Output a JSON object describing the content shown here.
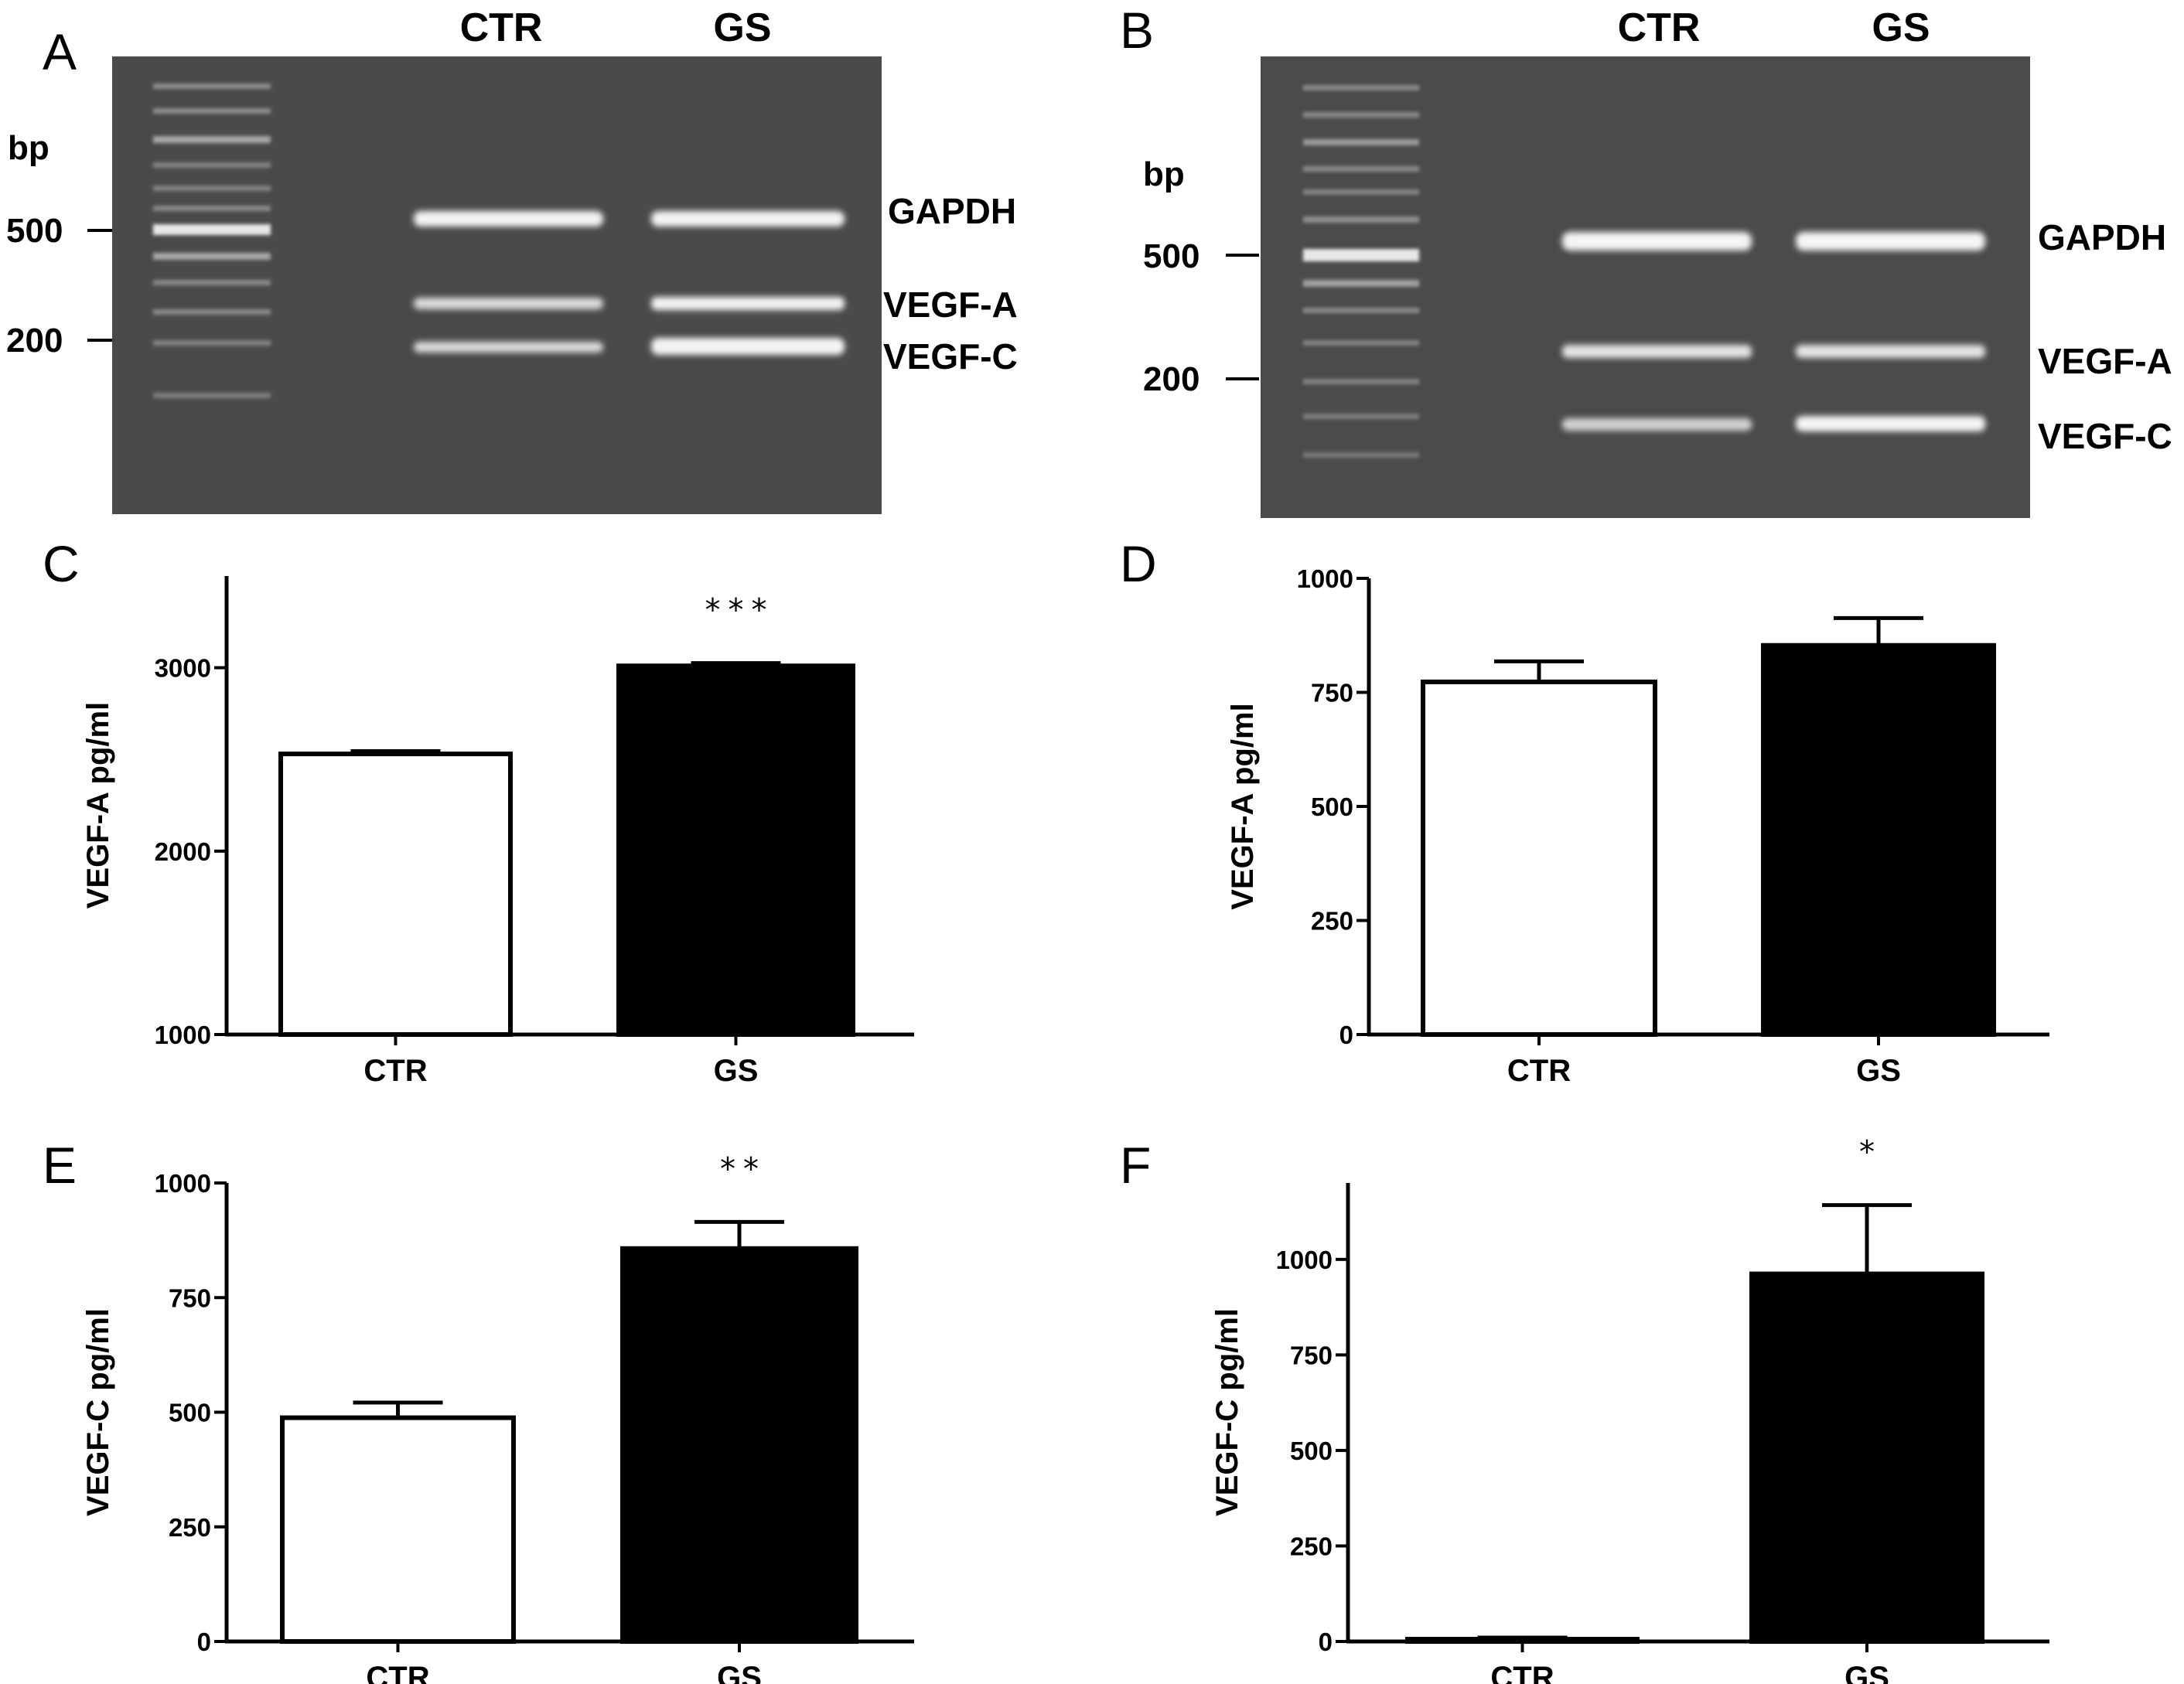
{
  "gels": [
    {
      "panel": "A",
      "lanes": [
        "CTR",
        "GS"
      ],
      "bp_title": "bp",
      "markers": [
        "500",
        "200"
      ],
      "bands": [
        "GAPDH",
        "VEGF-A",
        "VEGF-C"
      ]
    },
    {
      "panel": "B",
      "lanes": [
        "CTR",
        "GS"
      ],
      "bp_title": "bp",
      "markers": [
        "500",
        "200"
      ],
      "bands": [
        "GAPDH",
        "VEGF-A",
        "VEGF-C"
      ]
    }
  ],
  "chart_data": [
    {
      "panel": "C",
      "type": "bar",
      "categories": [
        "CTR",
        "GS"
      ],
      "values": [
        2530,
        3010
      ],
      "errors": [
        15,
        15
      ],
      "bar_colors": [
        "#ffffff",
        "#000000"
      ],
      "ylabel": "VEGF-A pg/ml",
      "ylim": [
        1000,
        3500
      ],
      "yticks": [
        "1000",
        "2000",
        "3000"
      ],
      "significance": [
        "",
        "***"
      ]
    },
    {
      "panel": "D",
      "type": "bar",
      "categories": [
        "CTR",
        "GS"
      ],
      "values": [
        773,
        853
      ],
      "errors": [
        45,
        60
      ],
      "bar_colors": [
        "#ffffff",
        "#000000"
      ],
      "ylabel": "VEGF-A pg/ml",
      "ylim": [
        0,
        1000
      ],
      "yticks": [
        "0",
        "250",
        "500",
        "750",
        "1000"
      ],
      "significance": [
        "",
        ""
      ]
    },
    {
      "panel": "E",
      "type": "bar",
      "categories": [
        "CTR",
        "GS"
      ],
      "values": [
        488,
        857
      ],
      "errors": [
        33,
        58
      ],
      "bar_colors": [
        "#ffffff",
        "#000000"
      ],
      "ylabel": "VEGF-C pg/ml",
      "ylim": [
        0,
        1000
      ],
      "yticks": [
        "0",
        "250",
        "500",
        "750",
        "1000"
      ],
      "significance": [
        "",
        "**"
      ]
    },
    {
      "panel": "F",
      "type": "bar",
      "categories": [
        "CTR",
        "GS"
      ],
      "values": [
        6,
        962
      ],
      "errors": [
        4,
        180
      ],
      "bar_colors": [
        "#ffffff",
        "#000000"
      ],
      "ylabel": "VEGF-C pg/ml",
      "ylim": [
        0,
        1200
      ],
      "yticks": [
        "0",
        "250",
        "500",
        "750",
        "1000"
      ],
      "significance": [
        "",
        "*"
      ]
    }
  ]
}
